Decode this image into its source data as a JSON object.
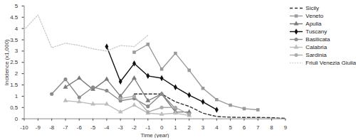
{
  "chart_data": {
    "type": "line",
    "x_label": "Time (year)",
    "y_label": "Incidence (x1,000)",
    "x": [
      -10,
      -9,
      -8,
      -7,
      -6,
      -5,
      -4,
      -3,
      -2,
      -1,
      0,
      1,
      2,
      3,
      4,
      5,
      6,
      7,
      8,
      9
    ],
    "xlim": [
      -10,
      9
    ],
    "xticks": [
      -10,
      -9,
      -8,
      -7,
      -6,
      -5,
      -4,
      -3,
      -2,
      -1,
      0,
      1,
      2,
      3,
      4,
      5,
      6,
      7,
      8,
      9
    ],
    "ylim": [
      0,
      5
    ],
    "yticks": [
      0,
      0.5,
      1,
      1.5,
      2,
      2.5,
      3,
      3.5,
      4,
      4.5,
      5
    ],
    "grid": false,
    "legend": "right",
    "series": [
      {
        "name": "Sicily",
        "color": "#333333",
        "marker": "none",
        "line_style": "dashed",
        "values": [
          null,
          null,
          null,
          null,
          null,
          null,
          null,
          null,
          1.1,
          1.1,
          1.1,
          0.75,
          0.55,
          0.25,
          0.1,
          0.07,
          0.06,
          0.06,
          0.05,
          0.02
        ]
      },
      {
        "name": "Veneto",
        "color": "#9a9a9a",
        "marker": "square",
        "line_style": "solid",
        "values": [
          null,
          null,
          null,
          null,
          null,
          null,
          null,
          null,
          2.95,
          3.3,
          2.2,
          2.9,
          2.15,
          1.35,
          0.85,
          0.6,
          0.45,
          0.4,
          null,
          null
        ]
      },
      {
        "name": "Apulia",
        "color": "#7a7a7a",
        "marker": "triangle",
        "line_style": "solid",
        "values": [
          null,
          null,
          null,
          1.4,
          1.8,
          1.3,
          1.75,
          1.0,
          1.8,
          0.8,
          1.1,
          0.3,
          0.3,
          null,
          null,
          null,
          null,
          null,
          null,
          null
        ]
      },
      {
        "name": "Tuscany",
        "color": "#111111",
        "marker": "diamond",
        "line_style": "solid",
        "values": [
          null,
          null,
          null,
          null,
          null,
          null,
          3.2,
          1.65,
          2.45,
          1.9,
          1.8,
          1.4,
          1.05,
          0.75,
          0.4,
          null,
          null,
          null,
          null,
          null
        ]
      },
      {
        "name": "Basilicata",
        "color": "#8a8a8a",
        "marker": "circle",
        "line_style": "solid",
        "values": [
          null,
          null,
          1.1,
          1.75,
          0.95,
          1.4,
          1.25,
          0.8,
          0.9,
          0.55,
          1.1,
          0.45,
          null,
          null,
          null,
          null,
          null,
          null,
          null,
          null
        ]
      },
      {
        "name": "Calabria",
        "color": "#bdbdbd",
        "marker": "triangle",
        "line_style": "solid",
        "values": [
          null,
          null,
          null,
          0.8,
          0.75,
          0.65,
          0.65,
          0.3,
          0.6,
          0.25,
          0.2,
          0.25,
          0.15,
          null,
          null,
          null,
          null,
          null,
          null,
          null
        ]
      },
      {
        "name": "Sardinia",
        "color": "#ababab",
        "marker": "circle",
        "line_style": "solid",
        "values": [
          null,
          null,
          null,
          null,
          null,
          null,
          null,
          0.9,
          1.0,
          0.3,
          0.5,
          0.5,
          0.2,
          null,
          null,
          null,
          null,
          null,
          null,
          null
        ]
      },
      {
        "name": "Friuli Venezia Giulia",
        "color": "#cccccc",
        "marker": "none",
        "line_style": "dotted",
        "values": [
          3.95,
          4.6,
          3.15,
          3.35,
          3.25,
          3.1,
          3.0,
          3.25,
          3.2,
          3.7,
          null,
          null,
          null,
          null,
          null,
          null,
          null,
          null,
          null,
          null
        ]
      }
    ]
  }
}
